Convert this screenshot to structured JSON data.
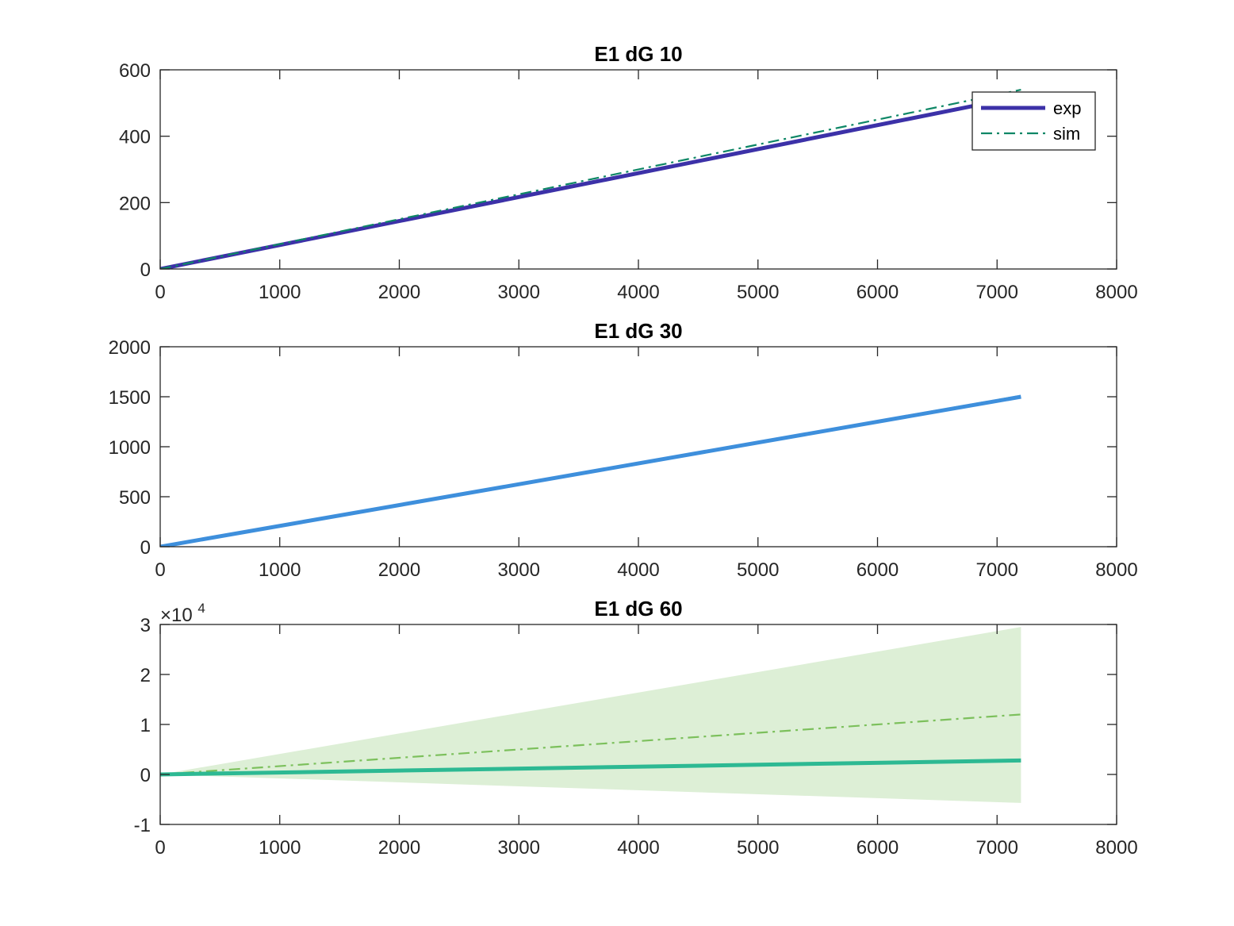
{
  "chart_data": [
    {
      "type": "line",
      "title": "E1 dG 10",
      "xlim": [
        0,
        8000
      ],
      "ylim": [
        0,
        600
      ],
      "xticks": [
        0,
        1000,
        2000,
        3000,
        4000,
        5000,
        6000,
        7000,
        8000
      ],
      "yticks": [
        0,
        200,
        400,
        600
      ],
      "xtick_labels": [
        "0",
        "1000",
        "2000",
        "3000",
        "4000",
        "5000",
        "6000",
        "7000",
        "8000"
      ],
      "ytick_labels": [
        "0",
        "200",
        "400",
        "600"
      ],
      "grid": false,
      "legend": {
        "location": "top-right",
        "entries": [
          "exp",
          "sim"
        ]
      },
      "series": [
        {
          "name": "exp",
          "style": "solid-thick",
          "color": "#3C31A8",
          "x": [
            0,
            7200
          ],
          "y": [
            0,
            520
          ]
        },
        {
          "name": "sim",
          "style": "dash-dot",
          "color": "#0E8766",
          "x": [
            0,
            7200
          ],
          "y": [
            0,
            540
          ]
        }
      ]
    },
    {
      "type": "line",
      "title": "E1 dG 30",
      "xlim": [
        0,
        8000
      ],
      "ylim": [
        0,
        2000
      ],
      "xticks": [
        0,
        1000,
        2000,
        3000,
        4000,
        5000,
        6000,
        7000,
        8000
      ],
      "yticks": [
        0,
        500,
        1000,
        1500,
        2000
      ],
      "xtick_labels": [
        "0",
        "1000",
        "2000",
        "3000",
        "4000",
        "5000",
        "6000",
        "7000",
        "8000"
      ],
      "ytick_labels": [
        "0",
        "500",
        "1000",
        "1500",
        "2000"
      ],
      "grid": false,
      "series": [
        {
          "style": "dash-dot",
          "color": "#8CB83A",
          "x": [
            0,
            7200
          ],
          "y": [
            0,
            1510
          ]
        },
        {
          "style": "solid-thick",
          "color": "#3E8FDC",
          "x": [
            0,
            7200
          ],
          "y": [
            0,
            1500
          ]
        }
      ]
    },
    {
      "type": "area",
      "title": "E1 dG 60",
      "xlim": [
        0,
        8000
      ],
      "ylim": [
        -1,
        3
      ],
      "y_multiplier_base": "×10",
      "y_multiplier_exponent": "4",
      "xticks": [
        0,
        1000,
        2000,
        3000,
        4000,
        5000,
        6000,
        7000,
        8000
      ],
      "yticks": [
        -1,
        0,
        1,
        2,
        3
      ],
      "xtick_labels": [
        "0",
        "1000",
        "2000",
        "3000",
        "4000",
        "5000",
        "6000",
        "7000",
        "8000"
      ],
      "ytick_labels": [
        "-1",
        "0",
        "1",
        "2",
        "3"
      ],
      "grid": false,
      "band": {
        "color": "#DDEFD6",
        "x": [
          0,
          7200
        ],
        "upper": [
          0,
          2.95
        ],
        "lower": [
          0,
          -0.57
        ]
      },
      "series": [
        {
          "style": "dash-dot",
          "color": "#7CC05C",
          "x": [
            0,
            7200
          ],
          "y": [
            0,
            1.2
          ]
        },
        {
          "style": "solid-thick",
          "color": "#2DB993",
          "x": [
            0,
            7200
          ],
          "y": [
            0,
            0.28
          ]
        }
      ]
    }
  ]
}
